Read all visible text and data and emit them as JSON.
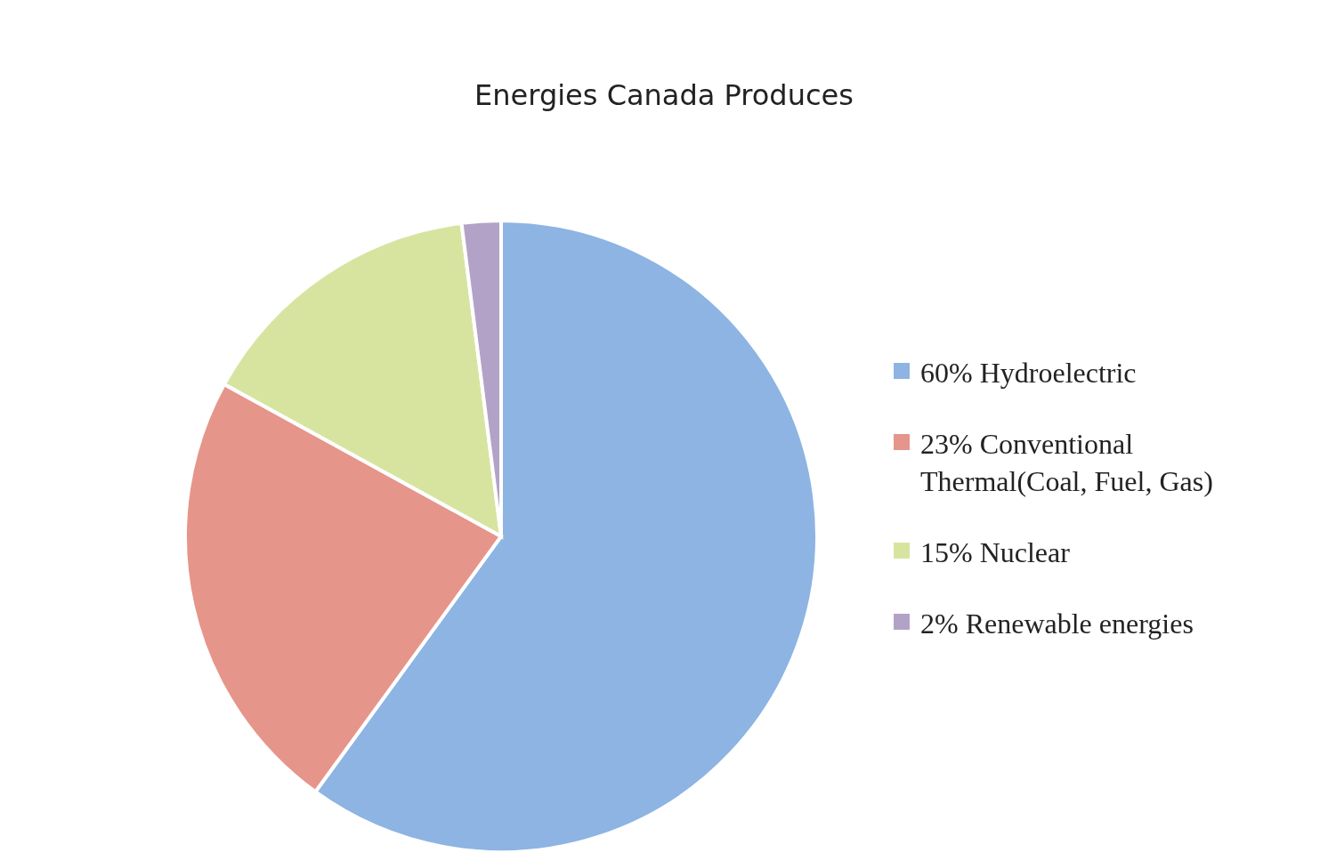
{
  "chart_data": {
    "type": "pie",
    "title": "Energies Canada Produces",
    "categories": [
      "60% Hydroelectric",
      "23% Conventional Thermal(Coal, Fuel, Gas)",
      "15% Nuclear",
      "2% Renewable energies"
    ],
    "values": [
      60,
      23,
      15,
      2
    ],
    "colors": [
      "#8db4e2",
      "#e6958a",
      "#d7e4a0",
      "#b3a2c7"
    ],
    "legend": "right"
  }
}
